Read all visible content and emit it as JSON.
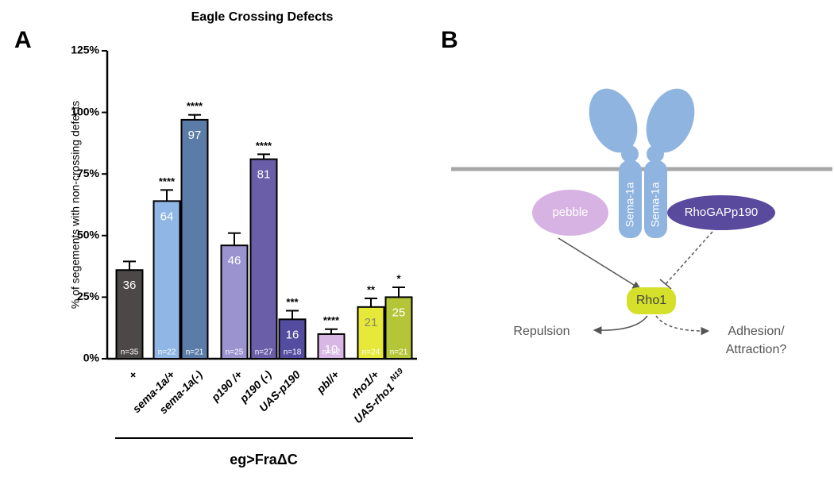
{
  "panel_labels": [
    "A",
    "B"
  ],
  "chart_data": {
    "type": "bar",
    "title": "Eagle Crossing Defects",
    "y_label": "% of segements with non-crossing defects",
    "x_label": "eg>FraΔC",
    "categories": [
      "+",
      "sema-1a/+",
      "sema-1a(-)",
      "p190 /+",
      "p190 (-)",
      "UAS-p190",
      "pbl/+",
      "rho1/+",
      "UAS-rho1"
    ],
    "category_superscripts": [
      null,
      null,
      null,
      null,
      null,
      null,
      null,
      null,
      "N19"
    ],
    "values": [
      36,
      64,
      97,
      46,
      81,
      16,
      10,
      21,
      25
    ],
    "errors": [
      3.5,
      4.5,
      2,
      5,
      2,
      3.5,
      2,
      3.5,
      4
    ],
    "n_labels": [
      "n=35",
      "n=22",
      "n=21",
      "n=25",
      "n=27",
      "n=18",
      "n=22",
      "n=24",
      "n=21"
    ],
    "significance": [
      null,
      "****",
      "****",
      null,
      "****",
      "***",
      "****",
      "**",
      "*"
    ],
    "colors": [
      "#4d4848",
      "#8fb6e4",
      "#5b7ca6",
      "#9b93cf",
      "#6a5ea9",
      "#544c9e",
      "#d9b7e4",
      "#e6e83a",
      "#b5c538"
    ],
    "value_label_colors": [
      "#ffffff",
      "#ffffff",
      "#ffffff",
      "#ffffff",
      "#ffffff",
      "#ffffff",
      "#ffffff",
      "#8a8a6a",
      "#ffffff"
    ],
    "ylim": [
      0,
      125
    ],
    "yticks": [
      {
        "value": 0,
        "label": "0%"
      },
      {
        "value": 25,
        "label": "25%"
      },
      {
        "value": 50,
        "label": "50%"
      },
      {
        "value": 75,
        "label": "75%"
      },
      {
        "value": 100,
        "label": "100%"
      },
      {
        "value": 125,
        "label": "125%"
      }
    ]
  },
  "diagram": {
    "receptor_labels": [
      "Sema-1a",
      "Sema-1a"
    ],
    "pebble": "pebble",
    "rhogap": "RhoGAPp190",
    "rho1": "Rho1",
    "repulsion": "Repulsion",
    "adhesion": [
      "Adhesion/",
      "Attraction?"
    ]
  }
}
